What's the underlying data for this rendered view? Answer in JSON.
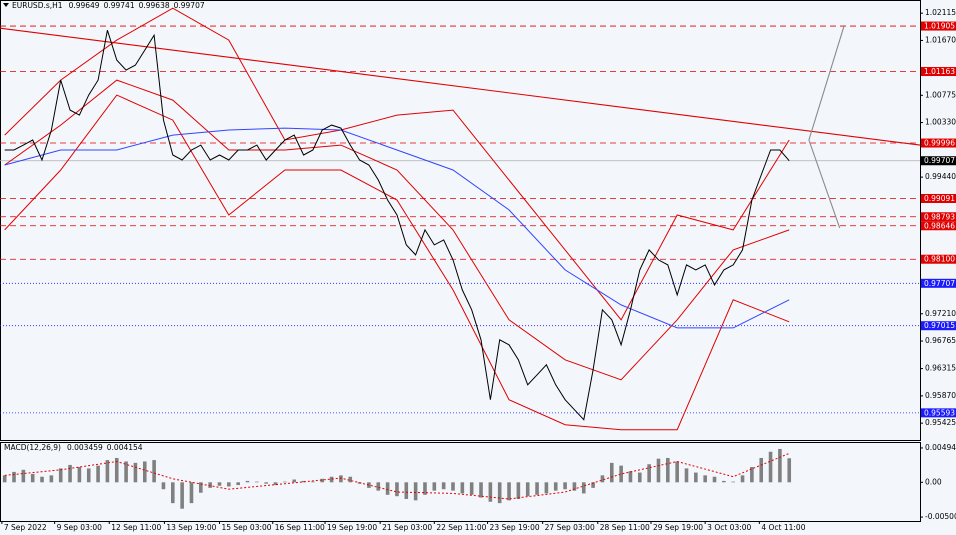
{
  "chart_data": [
    {
      "type": "line",
      "title": "EURUSD.s,H1",
      "header_values": [
        0.99649,
        0.99741,
        0.99638,
        0.99707
      ],
      "xlim": [
        -0.5,
        98
      ],
      "ylim": [
        0.9515,
        1.0233
      ],
      "yticks": [
        1.02115,
        {
          "value": 1.0167,
          "label": "1.01670"
        },
        1.00775,
        {
          "value": 1.0033,
          "label": "1.00330"
        },
        {
          "value": 0.9944,
          "label": "0.99440"
        },
        {
          "value": 0.9721,
          "label": "0.97210"
        },
        0.96765,
        0.96315,
        {
          "value": 0.9587,
          "label": "0.95870"
        },
        0.95425
      ],
      "price": {
        "color": "#000000",
        "values": [
          0.99882,
          0.99882,
          0.99963,
          1.00045,
          0.99719,
          1.00208,
          1.01023,
          1.00534,
          1.00452,
          1.00778,
          1.01023,
          1.01838,
          1.01349,
          1.01186,
          1.01267,
          1.01512,
          1.01756,
          1.00371,
          0.998,
          0.99719,
          0.99882,
          0.99963,
          0.99719,
          0.998,
          0.99719,
          0.99882,
          0.99882,
          0.99963,
          0.99719,
          0.99882,
          1.00045,
          1.00126,
          0.998,
          0.99882,
          1.00208,
          1.00289,
          1.0024,
          0.99963,
          0.99719,
          0.99637,
          0.99393,
          0.99067,
          0.98822,
          0.98333,
          0.9817,
          0.98578,
          0.98333,
          0.98415,
          0.98089,
          0.976,
          0.97274,
          0.96785,
          0.95807,
          0.96785,
          0.96703,
          0.96459,
          0.96051,
          0.96214,
          0.96377,
          0.96051,
          0.95807,
          0.95644,
          0.95481,
          0.96296,
          0.97274,
          0.97111,
          0.96703,
          0.97274,
          0.97926,
          0.98252,
          0.98089,
          0.98007,
          0.97518,
          0.98007,
          0.97926,
          0.98007,
          0.97681,
          0.97926,
          0.98007,
          0.98252,
          0.99067,
          0.99474,
          0.99882,
          0.99882,
          0.99707
        ]
      },
      "series": [
        {
          "color": "#e00000",
          "x": [
            0,
            6,
            12,
            18,
            24,
            30,
            36,
            42,
            48,
            54,
            60,
            66,
            72,
            78,
            84
          ],
          "values": [
            1.00126,
            1.01023,
            1.01675,
            1.02197,
            1.01675,
            1.00045,
            1.00208,
            1.00452,
            1.00534,
            0.99393,
            0.98252,
            0.97111,
            0.98822,
            0.98578,
            1.00045
          ]
        },
        {
          "color": "#e00000",
          "x": [
            0,
            6,
            12,
            18,
            24,
            30,
            36,
            42,
            48,
            54,
            60,
            66,
            72,
            78,
            84
          ],
          "values": [
            0.98578,
            0.99556,
            1.00778,
            1.00371,
            0.98822,
            0.99556,
            0.99556,
            0.99067,
            0.976,
            0.95807,
            0.95399,
            0.95318,
            0.95318,
            0.97437,
            0.97078
          ]
        },
        {
          "color": "#e00000",
          "x": [
            0,
            6,
            12,
            18,
            24,
            30,
            36,
            42,
            48,
            54,
            60,
            66,
            72,
            78,
            84
          ],
          "values": [
            0.99637,
            1.00289,
            1.01023,
            1.00697,
            0.99882,
            0.99882,
            0.99963,
            0.99556,
            0.98578,
            0.97111,
            0.96459,
            0.96133,
            0.97111,
            0.98252,
            0.98578
          ]
        },
        {
          "color": "#3344ff",
          "x": [
            0,
            6,
            12,
            18,
            24,
            30,
            36,
            42,
            48,
            54,
            60,
            66,
            72,
            78,
            84
          ],
          "values": [
            0.99637,
            0.99882,
            0.99882,
            1.00126,
            1.00208,
            1.0024,
            1.00208,
            0.99882,
            0.99556,
            0.98904,
            0.97926,
            0.97355,
            0.9698,
            0.9698,
            0.97437
          ]
        },
        {
          "color": "#e00000",
          "x": [
            -0.5,
            98
          ],
          "values": [
            1.0187,
            0.99963
          ]
        },
        {
          "color": "#8a8a8a",
          "x": [
            86.1,
            89.9
          ],
          "values": [
            1.00045,
            1.01919
          ]
        },
        {
          "color": "#8a8a8a",
          "x": [
            86.1,
            89.4
          ],
          "values": [
            1.00045,
            0.98611
          ]
        }
      ],
      "levels": [
        {
          "value": 1.01905,
          "color": "#e00000"
        },
        {
          "value": 1.01163,
          "color": "#e00000"
        },
        {
          "value": 0.99996,
          "color": "#e00000"
        },
        {
          "value": 0.99091,
          "color": "#e00000"
        },
        {
          "value": 0.98793,
          "color": "#e00000"
        },
        {
          "value": 0.98646,
          "color": "#e00000"
        },
        {
          "value": 0.981,
          "label": "0.98100",
          "color": "#e00000"
        },
        {
          "value": 0.97707,
          "color": "#1a1aff"
        },
        {
          "value": 0.97015,
          "color": "#1a1aff"
        },
        {
          "value": 0.95593,
          "color": "#1a1aff"
        }
      ],
      "current": {
        "value": 0.99707,
        "color": "#000000"
      }
    },
    {
      "type": "bar",
      "title": "MACD(12,26,9)",
      "header_values": [
        0.003459,
        0.004154
      ],
      "xlim": [
        -0.5,
        98
      ],
      "ylim": [
        -0.00557,
        0.0058
      ],
      "yticks": [
        0.004943,
        {
          "value": 0,
          "label": "0.00"
        },
        -0.005003
      ],
      "color": "#808080",
      "values": [
        0.001,
        0.0015,
        0.0018,
        0.0012,
        0.0008,
        0.001,
        0.002,
        0.0025,
        0.0022,
        0.002,
        0.0024,
        0.0032,
        0.0035,
        0.003,
        0.0028,
        0.003,
        0.0032,
        -0.001,
        -0.003,
        -0.0038,
        -0.003,
        -0.0015,
        -0.0008,
        -0.0005,
        -0.0006,
        -0.0004,
        0.0002,
        0.0001,
        -0.0002,
        -0.0004,
        0.0001,
        0.0004,
        0.0002,
        0.0001,
        0.0005,
        0.0008,
        0.001,
        0.0008,
        -0.0002,
        -0.0008,
        -0.0012,
        -0.0018,
        -0.002,
        -0.0024,
        -0.0026,
        -0.0018,
        -0.0012,
        -0.001,
        -0.0012,
        -0.0016,
        -0.0018,
        -0.0022,
        -0.0028,
        -0.003,
        -0.0026,
        -0.0024,
        -0.002,
        -0.0018,
        -0.0016,
        -0.0012,
        -0.001,
        -0.0012,
        -0.0016,
        -0.0008,
        0.001,
        0.0028,
        0.0024,
        0.0016,
        0.0014,
        0.0026,
        0.0034,
        0.0035,
        0.003,
        0.002,
        0.0014,
        0.001,
        0.0008,
        0.0002,
        0.0001,
        0.001,
        0.0022,
        0.0035,
        0.0044,
        0.0048,
        0.003459
      ],
      "signal": {
        "color": "#e00000",
        "x": [
          0,
          6,
          12,
          18,
          24,
          30,
          36,
          42,
          48,
          54,
          60,
          66,
          72,
          78,
          84
        ],
        "values": [
          0.001,
          0.0018,
          0.003,
          0.0005,
          -0.001,
          -0.0002,
          0.0006,
          -0.0014,
          -0.0016,
          -0.0024,
          -0.0014,
          0.0012,
          0.003,
          0.0008,
          0.004154
        ]
      },
      "xticks": [
        {
          "value": -0.3,
          "label": "7 Sep 2022"
        },
        {
          "value": 5.35,
          "label": "9 Sep 03:00"
        },
        {
          "value": 11.2,
          "label": "12 Sep 11:00"
        },
        {
          "value": 17.1,
          "label": "13 Sep 19:00"
        },
        {
          "value": 23.0,
          "label": "15 Sep 03:00"
        },
        {
          "value": 28.7,
          "label": "16 Sep 11:00"
        },
        {
          "value": 34.3,
          "label": "19 Sep 19:00"
        },
        {
          "value": 40.2,
          "label": "21 Sep 03:00"
        },
        {
          "value": 46.0,
          "label": "22 Sep 11:00"
        },
        {
          "value": 51.7,
          "label": "23 Sep 19:00"
        },
        {
          "value": 57.6,
          "label": "27 Sep 03:00"
        },
        {
          "value": 63.5,
          "label": "28 Sep 11:00"
        },
        {
          "value": 69.2,
          "label": "29 Sep 19:00"
        },
        {
          "value": 75.0,
          "label": "3 Oct 03:00"
        },
        {
          "value": 80.8,
          "label": "4 Oct 11:00"
        }
      ]
    }
  ]
}
